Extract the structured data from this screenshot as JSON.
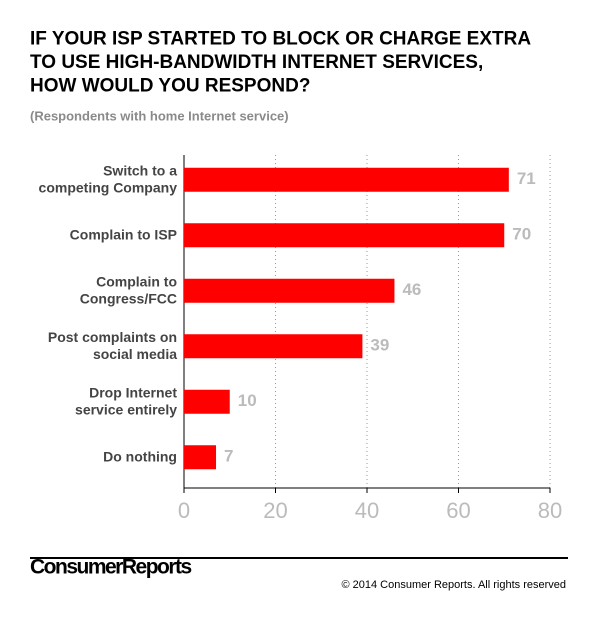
{
  "chart_data": {
    "type": "bar",
    "orientation": "horizontal",
    "title": "IF YOUR ISP STARTED TO BLOCK OR CHARGE EXTRA\nTO USE HIGH-BANDWIDTH INTERNET SERVICES,\nHOW WOULD YOU RESPOND?",
    "subtitle": "(Respondents with home Internet service)",
    "categories": [
      "Switch to a\ncompeting Company",
      "Complain to ISP",
      "Complain to\nCongress/FCC",
      "Post complaints on\nsocial media",
      "Drop Internet\nservice entirely",
      "Do nothing"
    ],
    "values": [
      71,
      70,
      46,
      39,
      10,
      7
    ],
    "color": "#ff0000",
    "xlim": [
      0,
      80
    ],
    "xticks": [
      0,
      20,
      40,
      60,
      80
    ],
    "grid": true
  },
  "footer": {
    "logo": "ConsumerReports",
    "copyright": "© 2014 Consumer Reports. All rights reserved"
  }
}
